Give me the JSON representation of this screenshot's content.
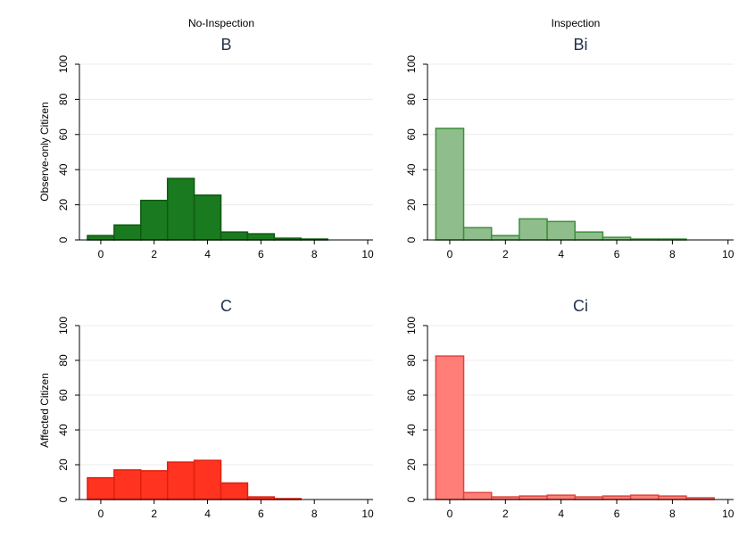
{
  "figure": {
    "col_headers": [
      "No-Inspection",
      "Inspection"
    ],
    "row_labels": [
      "Observe-only Citizen",
      "Affected Citizen"
    ]
  },
  "chart_data": [
    {
      "type": "bar",
      "title": "B",
      "x": [
        0,
        1,
        2,
        3,
        4,
        5,
        6,
        7,
        8
      ],
      "values": [
        2.5,
        8.5,
        22.5,
        35,
        25.5,
        4.5,
        3.5,
        1,
        0.5
      ],
      "xlim": [
        -0.8,
        10.2
      ],
      "ylim": [
        0,
        100
      ],
      "xticks": [
        0,
        2,
        4,
        6,
        8,
        10
      ],
      "yticks": [
        0,
        20,
        40,
        60,
        80,
        100
      ],
      "colors": {
        "fill": "#1a7a1f",
        "stroke": "#0f5a12"
      },
      "grid": true
    },
    {
      "type": "bar",
      "title": "Bi",
      "x": [
        0,
        1,
        2,
        3,
        4,
        5,
        6,
        7,
        8
      ],
      "values": [
        63.5,
        7,
        2.5,
        12,
        10.5,
        4.5,
        1.5,
        0.5,
        0.5
      ],
      "xlim": [
        -0.8,
        10.2
      ],
      "ylim": [
        0,
        100
      ],
      "xticks": [
        0,
        2,
        4,
        6,
        8,
        10
      ],
      "yticks": [
        0,
        20,
        40,
        60,
        80,
        100
      ],
      "colors": {
        "fill": "#8fbe8c",
        "stroke": "#3f8f3c"
      },
      "grid": true
    },
    {
      "type": "bar",
      "title": "C",
      "x": [
        0,
        1,
        2,
        3,
        4,
        5,
        6,
        7
      ],
      "values": [
        12.5,
        17,
        16.5,
        21.5,
        22.5,
        9.5,
        1.5,
        0.5
      ],
      "xlim": [
        -0.8,
        10.2
      ],
      "ylim": [
        0,
        100
      ],
      "xticks": [
        0,
        2,
        4,
        6,
        8,
        10
      ],
      "yticks": [
        0,
        20,
        40,
        60,
        80,
        100
      ],
      "colors": {
        "fill": "#ff3320",
        "stroke": "#e0200f"
      },
      "grid": true
    },
    {
      "type": "bar",
      "title": "Ci",
      "x": [
        0,
        1,
        2,
        3,
        4,
        5,
        6,
        7,
        8,
        9
      ],
      "values": [
        82.5,
        4,
        1.5,
        2,
        2.5,
        1.5,
        2,
        2.5,
        2,
        1
      ],
      "xlim": [
        -0.8,
        10.2
      ],
      "ylim": [
        0,
        100
      ],
      "xticks": [
        0,
        2,
        4,
        6,
        8,
        10
      ],
      "yticks": [
        0,
        20,
        40,
        60,
        80,
        100
      ],
      "colors": {
        "fill": "#ff7f78",
        "stroke": "#e0453c"
      },
      "grid": true
    }
  ]
}
